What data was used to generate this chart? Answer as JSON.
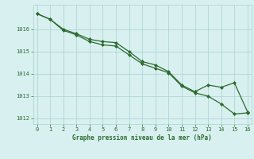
{
  "title": "Graphe pression niveau de la mer (hPa)",
  "line1_x": [
    0,
    1,
    2,
    3,
    4,
    5,
    6,
    7,
    8,
    9,
    10,
    11,
    12,
    13,
    14,
    15,
    16
  ],
  "line1_y": [
    1016.7,
    1016.45,
    1016.0,
    1015.8,
    1015.55,
    1015.45,
    1015.4,
    1015.0,
    1014.55,
    1014.4,
    1014.1,
    1013.5,
    1013.2,
    1013.5,
    1013.4,
    1013.6,
    1012.3
  ],
  "line2_x": [
    0,
    1,
    2,
    3,
    4,
    5,
    6,
    7,
    8,
    9,
    10,
    11,
    12,
    13,
    14,
    15,
    16
  ],
  "line2_y": [
    1016.7,
    1016.45,
    1015.95,
    1015.75,
    1015.45,
    1015.3,
    1015.25,
    1014.85,
    1014.45,
    1014.25,
    1014.05,
    1013.45,
    1013.15,
    1013.0,
    1012.65,
    1012.2,
    1012.25
  ],
  "line_color": "#2d6a2d",
  "marker_color": "#2d6a2d",
  "bg_color": "#d8f0f0",
  "grid_color": "#aacfcf",
  "text_color": "#2d6a2d",
  "xlim": [
    -0.3,
    16.3
  ],
  "ylim": [
    1011.75,
    1017.1
  ],
  "yticks": [
    1012,
    1013,
    1014,
    1015,
    1016
  ],
  "xticks": [
    0,
    1,
    2,
    3,
    4,
    5,
    6,
    7,
    8,
    9,
    10,
    11,
    12,
    13,
    14,
    15,
    16
  ]
}
